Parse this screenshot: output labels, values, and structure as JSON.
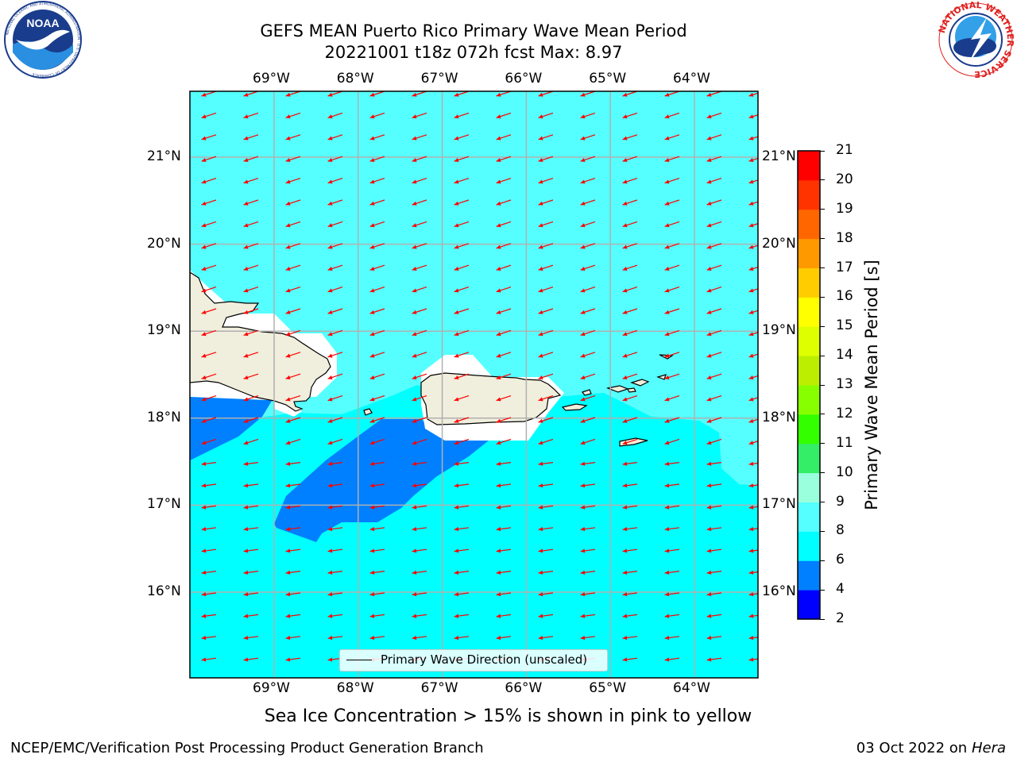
{
  "title": {
    "line1": "GEFS MEAN Puerto Rico Primary Wave Mean Period",
    "line2": "20221001 t18z 072h fcst   Max: 8.97"
  },
  "logos": {
    "noaa_text": "NOAA",
    "noaa_ring": "NATIONAL OCEANIC AND ATMOSPHERIC ADMINISTRATION · U.S. DEPARTMENT OF COMMERCE",
    "nws_ring": "NATIONAL WEATHER SERVICE"
  },
  "axes": {
    "lon_labels": [
      "69°W",
      "68°W",
      "67°W",
      "66°W",
      "65°W",
      "64°W"
    ],
    "lat_labels": [
      "21°N",
      "20°N",
      "19°N",
      "18°N",
      "17°N",
      "16°N"
    ],
    "lon_values": [
      -69,
      -68,
      -67,
      -66,
      -65,
      -64
    ],
    "lat_values": [
      21,
      20,
      19,
      18,
      17,
      16
    ]
  },
  "legend": {
    "label": "Primary Wave Direction (unscaled)"
  },
  "colorbar": {
    "label": "Primary Wave Mean Period [s]",
    "ticks": [
      "21",
      "20",
      "19",
      "18",
      "17",
      "16",
      "15",
      "14",
      "13",
      "12",
      "11",
      "10",
      "9",
      "8",
      "6",
      "4",
      "2"
    ],
    "colors": [
      "#0000ff",
      "#0080ff",
      "#00ffff",
      "#55ffff",
      "#99ffdd",
      "#33ee66",
      "#33ff00",
      "#88ff00",
      "#bbee00",
      "#ddff00",
      "#ffff00",
      "#ffcc00",
      "#ff9900",
      "#ff6600",
      "#ff3300",
      "#ff0000"
    ]
  },
  "caption": "Sea Ice Concentration > 15% is shown in pink to yellow",
  "footer": {
    "left": "NCEP/EMC/Verification Post Processing Product Generation Branch",
    "right_date": "03 Oct 2022 on ",
    "right_machine": "Hera"
  },
  "colors": {
    "sea_8_9": "#55ffff",
    "sea_6_8": "#00ffff",
    "sea_4_6": "#0080ff",
    "land": "#f0eedc",
    "arrow": "#ff0000",
    "grid": "#b0b0b0"
  }
}
